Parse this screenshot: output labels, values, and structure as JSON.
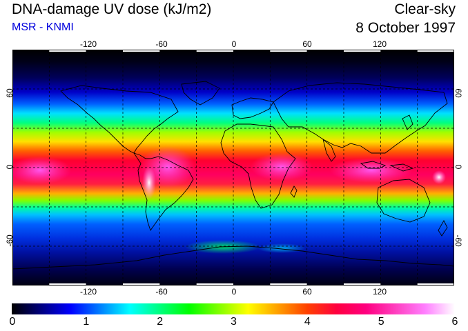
{
  "header": {
    "title": "DNA-damage UV dose (kJ/m2)",
    "source": "MSR - KNMI",
    "scenario": "Clear-sky",
    "date": "8 October 1997"
  },
  "map": {
    "projection": "equirectangular",
    "lon_range": [
      -180,
      180
    ],
    "lat_range": [
      -90,
      90
    ],
    "lon_ticks": [
      "-120",
      "-60",
      "0",
      "60",
      "120"
    ],
    "lat_ticks": [
      "60",
      "0",
      "-60"
    ],
    "grid": "dashed every 30 degrees",
    "coastlines": true
  },
  "colorbar": {
    "min": 0,
    "max": 6,
    "labels": [
      "0",
      "1",
      "2",
      "3",
      "4",
      "5",
      "6"
    ],
    "stops": [
      "#000000",
      "#000080",
      "#0000ff",
      "#0080ff",
      "#00ffff",
      "#00ff80",
      "#00ff00",
      "#80ff00",
      "#ffff00",
      "#ffa000",
      "#ff4000",
      "#ff0040",
      "#ff0080",
      "#ff40c0",
      "#ff80ff",
      "#ffffff"
    ]
  }
}
